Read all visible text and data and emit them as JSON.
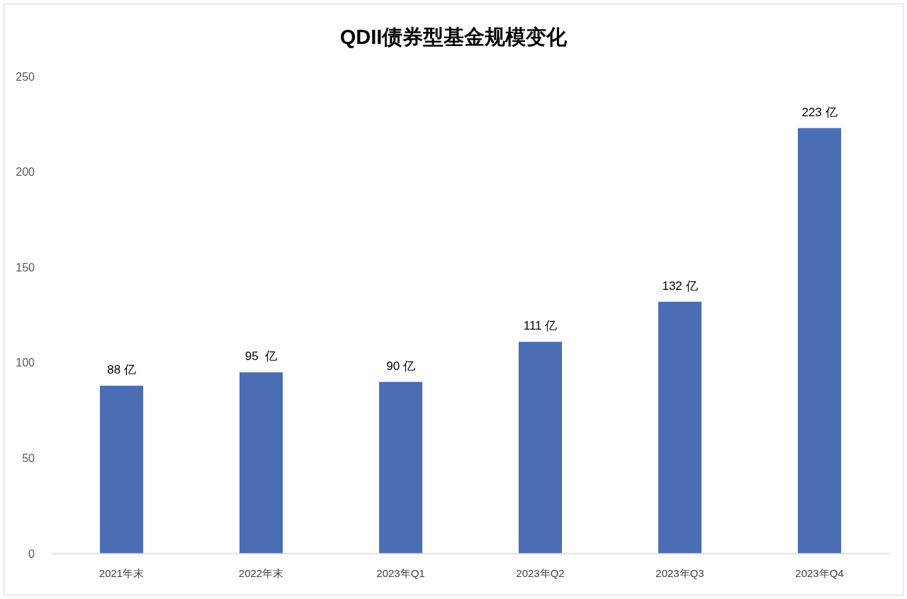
{
  "chart_data": {
    "type": "bar",
    "title": "QDII债券型基金规模变化",
    "categories": [
      "2021年末",
      "2022年末",
      "2023年Q1",
      "2023年Q2",
      "2023年Q3",
      "2023年Q4"
    ],
    "values": [
      88,
      95,
      90,
      111,
      132,
      223
    ],
    "color": "#4a6db4",
    "value_labels": [
      "88 亿",
      "95  亿",
      "90 亿",
      "111 亿",
      "132 亿",
      "223 亿"
    ],
    "ylim": [
      0,
      250
    ],
    "yticks": [
      0,
      50,
      100,
      150,
      200,
      250
    ],
    "grid": false
  }
}
